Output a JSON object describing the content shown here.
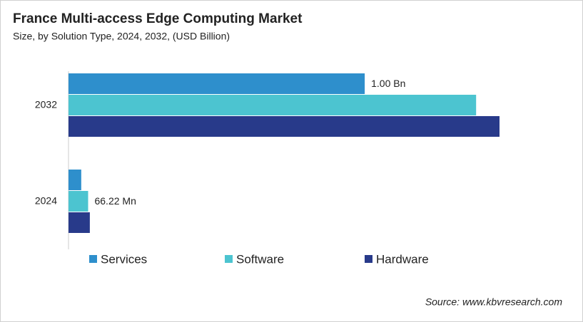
{
  "chart_data": {
    "type": "bar",
    "orientation": "horizontal",
    "title": "France Multi-access Edge Computing Market",
    "subtitle": "Size, by Solution Type, 2024, 2032, (USD Billion)",
    "categories": [
      "2032",
      "2024"
    ],
    "series": [
      {
        "name": "Services",
        "color": "#2e8fcc",
        "values": [
          1.0,
          0.043
        ],
        "value_labels": [
          "1.00 Bn",
          null
        ]
      },
      {
        "name": "Software",
        "color": "#4cc4d0",
        "values": [
          1.376,
          0.06622
        ],
        "value_labels": [
          null,
          "66.22 Mn"
        ]
      },
      {
        "name": "Hardware",
        "color": "#283a8a",
        "values": [
          1.455,
          0.072
        ]
      }
    ],
    "source": "Source: www.kbvresearch.com"
  }
}
